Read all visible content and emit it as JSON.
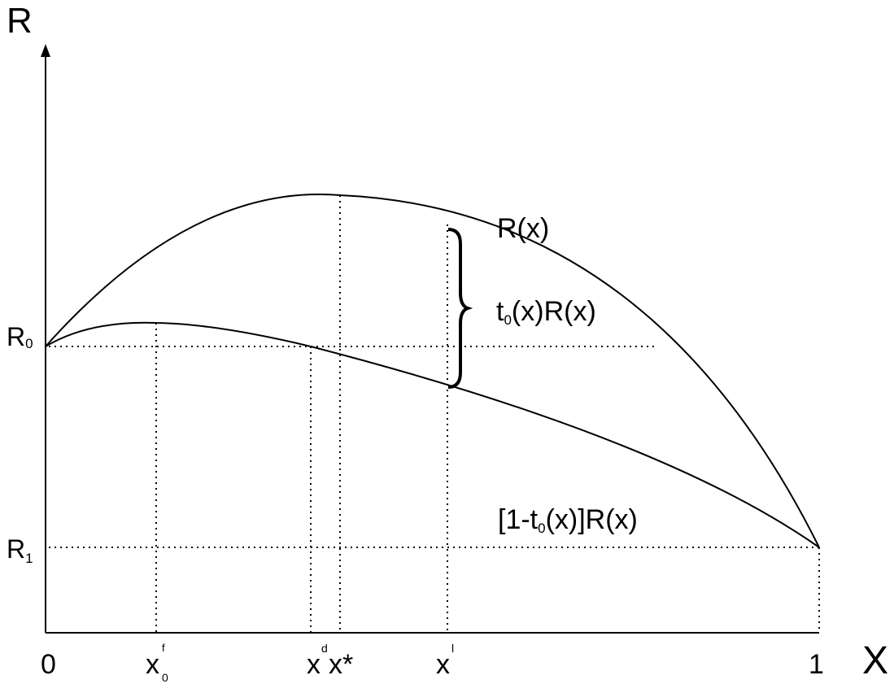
{
  "axes": {
    "y_title": "R",
    "x_title": "X",
    "origin_label": "0",
    "x_end_label": "1"
  },
  "y_ticks": {
    "r0": {
      "base": "R",
      "sub": "0"
    },
    "r1": {
      "base": "R",
      "sub": "1"
    }
  },
  "x_ticks": {
    "x0f": {
      "base": "x",
      "sup": "f",
      "sub": "0"
    },
    "xd": {
      "base": "x",
      "sup": "d"
    },
    "xstar": "x*",
    "xl": {
      "base": "x",
      "sup": "l"
    }
  },
  "curve_labels": {
    "upper": "R(x)",
    "gap": {
      "pre": "t",
      "sub": "0",
      "post": "(x)R(x)"
    },
    "lower": {
      "pre": "[1-t",
      "sub": "0",
      "post": "(x)]R(x)"
    }
  },
  "colors": {
    "line": "#000000",
    "background": "#ffffff"
  }
}
